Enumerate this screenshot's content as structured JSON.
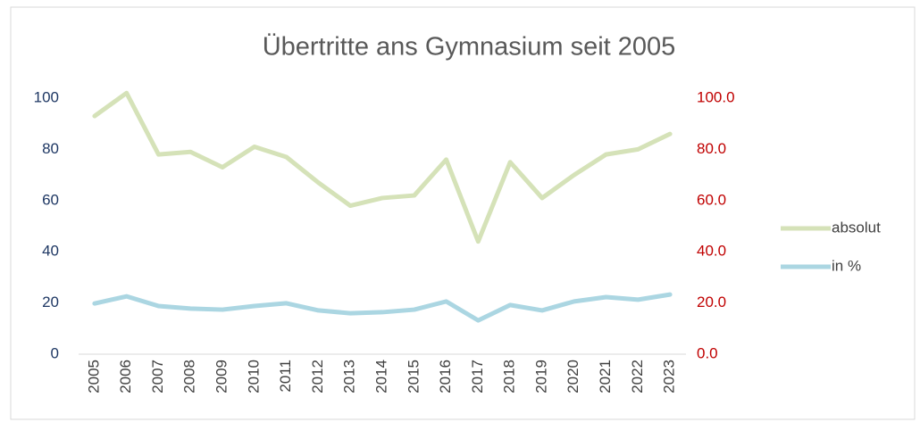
{
  "chart_data": {
    "type": "line",
    "title": "Übertritte ans Gymnasium seit 2005",
    "categories": [
      "2005",
      "2006",
      "2007",
      "2008",
      "2009",
      "2010",
      "2011",
      "2012",
      "2013",
      "2014",
      "2015",
      "2016",
      "2017",
      "2018",
      "2019",
      "2020",
      "2021",
      "2022",
      "2023"
    ],
    "series": [
      {
        "name": "absolut",
        "color": "#d5e2b8",
        "values": [
          93,
          102,
          78,
          79,
          73,
          81,
          77,
          67,
          58,
          61,
          62,
          76,
          44,
          75,
          61,
          70,
          78,
          80,
          86
        ]
      },
      {
        "name": "in %",
        "color": "#abd6e2",
        "axis": "y2",
        "values": [
          19.8,
          22.6,
          18.8,
          17.8,
          17.4,
          18.8,
          19.9,
          17.1,
          16.0,
          16.4,
          17.4,
          20.6,
          13.2,
          19.2,
          17.1,
          20.6,
          22.3,
          21.3,
          23.3
        ]
      }
    ],
    "ylim": [
      0,
      100
    ],
    "yticks": [
      0,
      20,
      40,
      60,
      80,
      100
    ],
    "ycolor": "#1f3864",
    "y2lim": [
      0,
      100
    ],
    "y2ticks": [
      {
        "value": 0,
        "label": "0.0"
      },
      {
        "value": 20,
        "label": "20.0"
      },
      {
        "value": 40,
        "label": "40.0"
      },
      {
        "value": 60,
        "label": "60.0"
      },
      {
        "value": 80,
        "label": "80.0"
      },
      {
        "value": 100,
        "label": "100.0"
      }
    ],
    "y2color": "#c00000",
    "grid": false,
    "legend": "right"
  }
}
